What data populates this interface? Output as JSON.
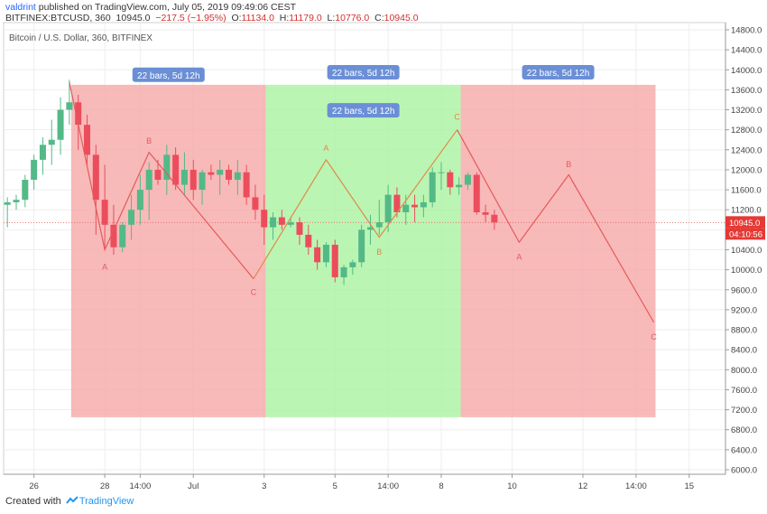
{
  "header": {
    "author": "valdrint",
    "published": "published on TradingView.com, July 05, 2019 09:49:06 CEST",
    "symbol": "BITFINEX:BTCUSD, 360",
    "last": "10945.0",
    "change": "−217.5 (−1.95%)",
    "o_label": "O:",
    "o_value": "11134.0",
    "h_label": "H:",
    "h_value": "11179.0",
    "l_label": "L:",
    "l_value": "10776.0",
    "c_label": "C:",
    "c_value": "10945.0"
  },
  "footer": {
    "created_with": "Created with",
    "brand": "TradingView"
  },
  "chart_data": {
    "type": "candlestick",
    "title": "Bitcoin / U.S. Dollar, 360, BITFINEX",
    "ylim": [
      5800,
      14900
    ],
    "y_ticks": [
      6000,
      6400,
      6800,
      7200,
      7600,
      8000,
      8400,
      8800,
      9200,
      9600,
      10000,
      10400,
      10800,
      11200,
      11600,
      12000,
      12400,
      12800,
      13200,
      13600,
      14000,
      14400,
      14800
    ],
    "y_tick_labels": [
      "6000.0",
      "6400.0",
      "6800.0",
      "7200.0",
      "7600.0",
      "8000.0",
      "8400.0",
      "8800.0",
      "9200.0",
      "9600.0",
      "10000.0",
      "10400.0",
      "10800.0",
      "11200.0",
      "11600.0",
      "12000.0",
      "12400.0",
      "12800.0",
      "13200.0",
      "13600.0",
      "14000.0",
      "14400.0",
      "14800.0"
    ],
    "xlim": [
      25.5,
      15.6
    ],
    "x_ticks": [
      {
        "t": 0.5,
        "label": "26"
      },
      {
        "t": 2.5,
        "label": "28"
      },
      {
        "t": 3.5,
        "label": "14:00"
      },
      {
        "t": 5.0,
        "label": "Jul"
      },
      {
        "t": 7.0,
        "label": "3"
      },
      {
        "t": 9.0,
        "label": "5"
      },
      {
        "t": 10.5,
        "label": "14:00"
      },
      {
        "t": 12.0,
        "label": "8"
      },
      {
        "t": 14.0,
        "label": "10"
      },
      {
        "t": 16.0,
        "label": "12"
      },
      {
        "t": 17.5,
        "label": "14:00"
      },
      {
        "t": 19.0,
        "label": "15"
      }
    ],
    "grid": true,
    "last_price": 10945.0,
    "last_price_label": "10945.0",
    "countdown_label": "04:10:56",
    "candles": [
      {
        "t": -0.25,
        "o": 11300,
        "h": 11450,
        "l": 10850,
        "c": 11350
      },
      {
        "t": 0.0,
        "o": 11350,
        "h": 11500,
        "l": 11200,
        "c": 11400
      },
      {
        "t": 0.25,
        "o": 11400,
        "h": 11900,
        "l": 11250,
        "c": 11800
      },
      {
        "t": 0.5,
        "o": 11800,
        "h": 12300,
        "l": 11600,
        "c": 12200
      },
      {
        "t": 0.75,
        "o": 12200,
        "h": 12650,
        "l": 11900,
        "c": 12500
      },
      {
        "t": 1.0,
        "o": 12500,
        "h": 13000,
        "l": 12100,
        "c": 12600
      },
      {
        "t": 1.25,
        "o": 12600,
        "h": 13450,
        "l": 12300,
        "c": 13200
      },
      {
        "t": 1.5,
        "o": 13200,
        "h": 13800,
        "l": 12900,
        "c": 13350
      },
      {
        "t": 1.75,
        "o": 13350,
        "h": 13500,
        "l": 12400,
        "c": 12900
      },
      {
        "t": 2.0,
        "o": 12900,
        "h": 13100,
        "l": 12100,
        "c": 12300
      },
      {
        "t": 2.25,
        "o": 12300,
        "h": 12500,
        "l": 10700,
        "c": 11400
      },
      {
        "t": 2.5,
        "o": 11400,
        "h": 12100,
        "l": 10400,
        "c": 10900
      },
      {
        "t": 2.75,
        "o": 10900,
        "h": 11300,
        "l": 10300,
        "c": 10450
      },
      {
        "t": 3.0,
        "o": 10450,
        "h": 10950,
        "l": 10350,
        "c": 10900
      },
      {
        "t": 3.25,
        "o": 10900,
        "h": 11500,
        "l": 10600,
        "c": 11200
      },
      {
        "t": 3.5,
        "o": 11200,
        "h": 11900,
        "l": 10900,
        "c": 11600
      },
      {
        "t": 3.75,
        "o": 11600,
        "h": 12150,
        "l": 11000,
        "c": 12000
      },
      {
        "t": 4.0,
        "o": 12000,
        "h": 12200,
        "l": 11700,
        "c": 11800
      },
      {
        "t": 4.25,
        "o": 11800,
        "h": 12500,
        "l": 11500,
        "c": 12300
      },
      {
        "t": 4.5,
        "o": 12300,
        "h": 12450,
        "l": 11600,
        "c": 11700
      },
      {
        "t": 4.75,
        "o": 11700,
        "h": 12350,
        "l": 11500,
        "c": 12000
      },
      {
        "t": 5.0,
        "o": 12000,
        "h": 12200,
        "l": 11400,
        "c": 11600
      },
      {
        "t": 5.25,
        "o": 11600,
        "h": 12000,
        "l": 11300,
        "c": 11950
      },
      {
        "t": 5.5,
        "o": 11950,
        "h": 12100,
        "l": 11800,
        "c": 11900
      },
      {
        "t": 5.75,
        "o": 11900,
        "h": 12200,
        "l": 11500,
        "c": 12000
      },
      {
        "t": 6.0,
        "o": 12000,
        "h": 12100,
        "l": 11700,
        "c": 11800
      },
      {
        "t": 6.25,
        "o": 11800,
        "h": 12200,
        "l": 11500,
        "c": 11950
      },
      {
        "t": 6.5,
        "o": 11950,
        "h": 12100,
        "l": 11300,
        "c": 11450
      },
      {
        "t": 6.75,
        "o": 11450,
        "h": 11700,
        "l": 11000,
        "c": 11200
      },
      {
        "t": 7.0,
        "o": 11200,
        "h": 11500,
        "l": 10500,
        "c": 10850
      },
      {
        "t": 7.25,
        "o": 10850,
        "h": 11150,
        "l": 10600,
        "c": 11050
      },
      {
        "t": 7.5,
        "o": 11050,
        "h": 11200,
        "l": 10800,
        "c": 10900
      },
      {
        "t": 7.75,
        "o": 10900,
        "h": 11050,
        "l": 10850,
        "c": 10950
      },
      {
        "t": 8.0,
        "o": 10950,
        "h": 11050,
        "l": 10500,
        "c": 10700
      },
      {
        "t": 8.25,
        "o": 10700,
        "h": 10900,
        "l": 10300,
        "c": 10450
      },
      {
        "t": 8.5,
        "o": 10450,
        "h": 10600,
        "l": 10000,
        "c": 10150
      },
      {
        "t": 8.75,
        "o": 10150,
        "h": 10550,
        "l": 10050,
        "c": 10500
      },
      {
        "t": 9.0,
        "o": 10500,
        "h": 10600,
        "l": 9750,
        "c": 9850
      },
      {
        "t": 9.25,
        "o": 9850,
        "h": 10100,
        "l": 9700,
        "c": 10050
      },
      {
        "t": 9.5,
        "o": 10050,
        "h": 10200,
        "l": 9900,
        "c": 10150
      },
      {
        "t": 9.75,
        "o": 10150,
        "h": 10900,
        "l": 10050,
        "c": 10800
      },
      {
        "t": 10.0,
        "o": 10800,
        "h": 11100,
        "l": 10500,
        "c": 10850
      },
      {
        "t": 10.25,
        "o": 10850,
        "h": 11400,
        "l": 10700,
        "c": 10950
      },
      {
        "t": 10.5,
        "o": 10950,
        "h": 11700,
        "l": 10750,
        "c": 11500
      },
      {
        "t": 10.75,
        "o": 11500,
        "h": 11650,
        "l": 11050,
        "c": 11150
      },
      {
        "t": 11.0,
        "o": 11150,
        "h": 11500,
        "l": 10900,
        "c": 11300
      },
      {
        "t": 11.25,
        "o": 11300,
        "h": 11500,
        "l": 10950,
        "c": 11250
      },
      {
        "t": 11.5,
        "o": 11250,
        "h": 11500,
        "l": 11050,
        "c": 11350
      },
      {
        "t": 11.75,
        "o": 11350,
        "h": 12050,
        "l": 11250,
        "c": 11950
      },
      {
        "t": 12.0,
        "o": 11950,
        "h": 12150,
        "l": 11600,
        "c": 11950
      },
      {
        "t": 12.25,
        "o": 11950,
        "h": 12000,
        "l": 11500,
        "c": 11650
      },
      {
        "t": 12.5,
        "o": 11650,
        "h": 11850,
        "l": 11500,
        "c": 11700
      },
      {
        "t": 12.75,
        "o": 11700,
        "h": 11950,
        "l": 11600,
        "c": 11900
      },
      {
        "t": 13.0,
        "o": 11900,
        "h": 11950,
        "l": 11100,
        "c": 11150
      },
      {
        "t": 13.25,
        "o": 11150,
        "h": 11300,
        "l": 10950,
        "c": 11100
      },
      {
        "t": 13.5,
        "o": 11100,
        "h": 11200,
        "l": 10800,
        "c": 10945
      }
    ],
    "zones": [
      {
        "name": "zone-1",
        "t0": 1.55,
        "t1": 7.05,
        "top": 13700,
        "bottom": 7050,
        "fill": "#f6a8a8",
        "label": "22 bars, 5d 12h"
      },
      {
        "name": "zone-2",
        "t0": 7.05,
        "t1": 12.55,
        "top": 13700,
        "bottom": 7050,
        "fill": "#a9f3a0",
        "label": "22 bars, 5d 12h"
      },
      {
        "name": "zone-3",
        "t0": 12.55,
        "t1": 18.05,
        "top": 13700,
        "bottom": 7050,
        "fill": "#f6a8a8",
        "label": "22 bars, 5d 12h"
      }
    ],
    "zone_labels": [
      {
        "t": 4.3,
        "y": 13900,
        "text": "22 bars, 5d 12h"
      },
      {
        "t": 9.8,
        "y": 13950,
        "text": "22 bars, 5d 12h"
      },
      {
        "t": 9.8,
        "y": 13190,
        "text": "22 bars, 5d 12h"
      },
      {
        "t": 15.3,
        "y": 13950,
        "text": "22 bars, 5d 12h"
      }
    ],
    "waves": [
      {
        "name": "wave-1",
        "color": "#e45a5a",
        "points": [
          [
            1.5,
            13750
          ],
          [
            2.5,
            10400
          ],
          [
            3.75,
            12350
          ],
          [
            6.7,
            9820
          ]
        ],
        "labels": [
          {
            "text": "A",
            "t": 2.5,
            "y": 10000
          },
          {
            "text": "B",
            "t": 3.75,
            "y": 12520
          },
          {
            "text": "C",
            "t": 6.7,
            "y": 9500
          }
        ]
      },
      {
        "name": "wave-2",
        "color": "#e08a4a",
        "points": [
          [
            6.7,
            9820
          ],
          [
            8.75,
            12200
          ],
          [
            10.25,
            10650
          ],
          [
            12.45,
            12800
          ]
        ],
        "labels": [
          {
            "text": "A",
            "t": 8.75,
            "y": 12380
          },
          {
            "text": "B",
            "t": 10.25,
            "y": 10300
          },
          {
            "text": "C",
            "t": 12.45,
            "y": 13000
          }
        ]
      },
      {
        "name": "wave-3",
        "color": "#e45a5a",
        "points": [
          [
            12.45,
            12800
          ],
          [
            14.2,
            10550
          ],
          [
            15.6,
            11900
          ],
          [
            18.0,
            8950
          ]
        ],
        "labels": [
          {
            "text": "A",
            "t": 14.2,
            "y": 10200
          },
          {
            "text": "B",
            "t": 15.6,
            "y": 12050
          },
          {
            "text": "C",
            "t": 18.0,
            "y": 8600
          }
        ]
      }
    ]
  }
}
